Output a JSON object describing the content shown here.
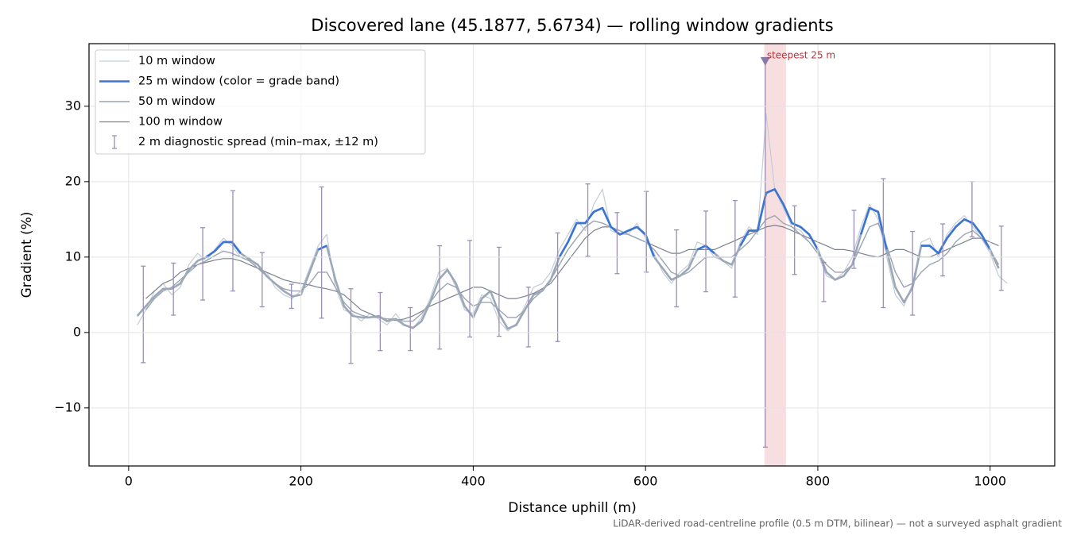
{
  "chart_data": {
    "type": "line",
    "title": "Discovered lane (45.1877, 5.6734) — rolling window gradients",
    "x_label": "Distance uphill (m)",
    "y_label": "Gradient (%)",
    "footnote": "LiDAR-derived road-centreline profile (0.5 m DTM, bilinear) — not a surveyed asphalt gradient",
    "xlim": [
      -46,
      1075
    ],
    "ylim": [
      -17.7,
      38.3
    ],
    "xticks": [
      0,
      200,
      400,
      600,
      800,
      1000
    ],
    "yticks": [
      {
        "value": -10,
        "label": "−10"
      },
      0,
      10,
      20,
      30
    ],
    "grid": true,
    "legend": "upper left",
    "x": [
      10,
      20,
      30,
      40,
      50,
      60,
      70,
      80,
      90,
      100,
      110,
      120,
      130,
      140,
      150,
      160,
      170,
      180,
      190,
      200,
      210,
      220,
      230,
      240,
      250,
      260,
      270,
      280,
      290,
      300,
      310,
      320,
      330,
      340,
      350,
      360,
      370,
      380,
      390,
      400,
      410,
      420,
      430,
      440,
      450,
      460,
      470,
      480,
      490,
      500,
      510,
      520,
      530,
      540,
      550,
      560,
      570,
      580,
      590,
      600,
      610,
      620,
      630,
      640,
      650,
      660,
      670,
      680,
      690,
      700,
      710,
      720,
      730,
      740,
      750,
      760,
      770,
      780,
      790,
      800,
      810,
      820,
      830,
      840,
      850,
      860,
      870,
      880,
      890,
      900,
      910,
      920,
      930,
      940,
      950,
      960,
      970,
      980,
      990,
      1000,
      1010,
      1020
    ],
    "series": [
      {
        "name": "10 m window",
        "color": "#c5ccd6",
        "width": 1.2,
        "values": [
          1.0,
          3.0,
          5.5,
          6.5,
          5.0,
          6.0,
          9.0,
          10.5,
          9.5,
          11.0,
          12.5,
          11.5,
          10.0,
          10.0,
          8.5,
          8.0,
          6.0,
          5.0,
          4.5,
          5.5,
          8.5,
          11.5,
          13.0,
          6.0,
          3.0,
          2.5,
          1.5,
          2.5,
          1.8,
          1.0,
          2.5,
          1.0,
          0.5,
          2.0,
          4.5,
          8.0,
          8.5,
          6.0,
          3.0,
          2.5,
          5.0,
          4.5,
          1.5,
          0.2,
          1.2,
          3.5,
          6.0,
          6.5,
          8.0,
          11.0,
          13.0,
          15.0,
          13.5,
          17.0,
          19.0,
          13.5,
          13.0,
          13.0,
          14.5,
          12.5,
          10.5,
          8.0,
          6.5,
          8.0,
          9.0,
          12.0,
          11.5,
          10.0,
          9.5,
          8.5,
          12.0,
          14.0,
          13.0,
          29.0,
          19.0,
          16.5,
          14.0,
          13.5,
          12.0,
          10.5,
          7.5,
          7.0,
          8.0,
          10.0,
          14.0,
          17.0,
          15.0,
          10.0,
          5.0,
          3.5,
          6.5,
          12.0,
          12.5,
          10.0,
          13.0,
          14.5,
          15.5,
          14.0,
          12.5,
          10.5,
          7.5,
          6.5
        ]
      },
      {
        "name": "25 m window (color = grade band)",
        "color": "#9aa8b8",
        "legend_color": "#3a75d4",
        "width": 2.6,
        "grade_bands": [
          {
            "from": 10,
            "color": "#3a75d4"
          }
        ],
        "values": [
          2.2,
          3.5,
          4.8,
          5.8,
          5.8,
          6.5,
          8.3,
          9.5,
          10.0,
          10.8,
          12.0,
          12.0,
          10.5,
          9.7,
          9.0,
          7.5,
          6.5,
          5.5,
          4.8,
          5.0,
          8.0,
          11.0,
          11.5,
          7.0,
          3.5,
          2.2,
          2.0,
          2.0,
          2.2,
          1.5,
          1.8,
          1.0,
          0.6,
          1.5,
          4.0,
          7.0,
          8.3,
          6.5,
          3.5,
          2.0,
          4.5,
          5.5,
          2.5,
          0.5,
          1.0,
          3.0,
          5.0,
          5.5,
          7.0,
          10.0,
          12.0,
          14.5,
          14.5,
          16.0,
          16.5,
          14.0,
          13.0,
          13.5,
          14.0,
          13.0,
          10.0,
          8.5,
          7.0,
          7.5,
          8.5,
          11.0,
          11.5,
          10.5,
          9.5,
          9.0,
          11.5,
          13.5,
          13.5,
          18.5,
          19.0,
          17.0,
          14.5,
          14.0,
          13.0,
          11.0,
          8.0,
          7.0,
          7.5,
          9.0,
          13.0,
          16.5,
          16.0,
          11.0,
          6.0,
          4.0,
          6.0,
          11.5,
          11.5,
          10.5,
          12.5,
          14.0,
          15.0,
          14.5,
          13.0,
          11.0,
          8.5,
          null
        ]
      },
      {
        "name": "50 m window",
        "color": "#9ba4b2",
        "width": 1.4,
        "values": [
          null,
          3.0,
          4.5,
          5.5,
          6.0,
          7.0,
          8.0,
          9.0,
          9.5,
          10.2,
          10.8,
          10.5,
          10.0,
          9.5,
          8.5,
          7.5,
          6.5,
          5.8,
          5.5,
          5.5,
          6.5,
          8.0,
          8.0,
          6.0,
          4.0,
          2.8,
          2.3,
          2.0,
          2.0,
          1.8,
          1.8,
          1.5,
          1.5,
          2.5,
          4.0,
          5.5,
          6.5,
          6.0,
          4.5,
          3.5,
          4.0,
          4.0,
          3.0,
          2.0,
          2.0,
          3.0,
          4.5,
          5.5,
          7.0,
          9.0,
          11.0,
          12.5,
          14.0,
          14.8,
          14.5,
          14.0,
          13.5,
          13.0,
          12.5,
          12.0,
          11.0,
          9.5,
          8.0,
          7.5,
          8.0,
          9.0,
          10.0,
          10.0,
          10.0,
          10.0,
          11.0,
          12.0,
          13.5,
          15.0,
          15.5,
          14.5,
          14.0,
          13.0,
          12.0,
          10.5,
          9.0,
          8.0,
          8.0,
          9.0,
          11.5,
          14.0,
          14.5,
          11.5,
          8.0,
          6.0,
          6.5,
          8.0,
          9.0,
          9.5,
          10.5,
          12.0,
          13.0,
          13.5,
          12.5,
          11.0,
          9.0,
          null
        ]
      },
      {
        "name": "100 m window",
        "color": "#7c8290",
        "width": 1.2,
        "values": [
          null,
          4.5,
          5.5,
          6.5,
          7.0,
          8.0,
          8.5,
          9.0,
          9.3,
          9.6,
          9.8,
          9.8,
          9.5,
          9.0,
          8.5,
          8.0,
          7.5,
          7.0,
          6.7,
          6.5,
          6.3,
          6.0,
          5.8,
          5.5,
          5.0,
          4.0,
          3.0,
          2.5,
          2.0,
          1.8,
          1.6,
          1.8,
          2.2,
          2.8,
          3.5,
          4.0,
          4.5,
          5.0,
          5.5,
          6.0,
          6.0,
          5.5,
          5.0,
          4.5,
          4.5,
          4.8,
          5.2,
          5.8,
          6.5,
          8.0,
          9.5,
          11.0,
          12.5,
          13.5,
          14.0,
          14.0,
          13.5,
          13.0,
          12.5,
          12.0,
          11.5,
          11.0,
          10.5,
          10.5,
          11.0,
          11.0,
          11.0,
          11.0,
          11.5,
          12.0,
          12.5,
          13.0,
          13.5,
          14.0,
          14.2,
          14.0,
          13.5,
          13.0,
          12.5,
          12.0,
          11.5,
          11.0,
          11.0,
          10.8,
          10.5,
          10.2,
          10.0,
          10.5,
          11.0,
          11.0,
          10.5,
          10.0,
          10.0,
          10.5,
          11.0,
          11.5,
          12.0,
          12.5,
          12.5,
          12.0,
          11.5,
          null
        ]
      }
    ],
    "error_bars": {
      "name": "2 m diagnostic spread (min–max, ±12 m)",
      "color": "#9b8fb5",
      "x": [
        17,
        52,
        86,
        121,
        155,
        189,
        224,
        258,
        292,
        327,
        361,
        396,
        430,
        464,
        498,
        533,
        567,
        601,
        636,
        670,
        704,
        739,
        773,
        807,
        842,
        876,
        910,
        945,
        979,
        1013
      ],
      "low": [
        -4.0,
        2.3,
        4.3,
        5.5,
        3.4,
        3.2,
        1.9,
        -4.1,
        -2.4,
        -2.4,
        -2.2,
        -0.6,
        -0.5,
        -1.9,
        -1.2,
        10.1,
        7.8,
        8.0,
        3.4,
        5.4,
        4.7,
        -15.2,
        7.7,
        4.1,
        8.5,
        3.3,
        2.3,
        7.5,
        12.7,
        5.6
      ],
      "high": [
        8.8,
        9.2,
        13.9,
        18.8,
        10.6,
        6.4,
        19.3,
        5.8,
        5.3,
        3.3,
        11.5,
        12.2,
        11.3,
        6.0,
        13.2,
        19.7,
        15.9,
        18.7,
        13.6,
        16.1,
        17.5,
        36.4,
        16.8,
        9.3,
        16.2,
        20.4,
        13.4,
        14.4,
        20.0,
        14.1
      ]
    },
    "highlight": {
      "xrange": [
        738,
        763
      ],
      "color": "#e9a0a6",
      "label": "steepest 25 m",
      "label_color": "#c0303a",
      "marker": [
        739,
        36
      ],
      "marker_color": "#8a7aa8"
    }
  }
}
